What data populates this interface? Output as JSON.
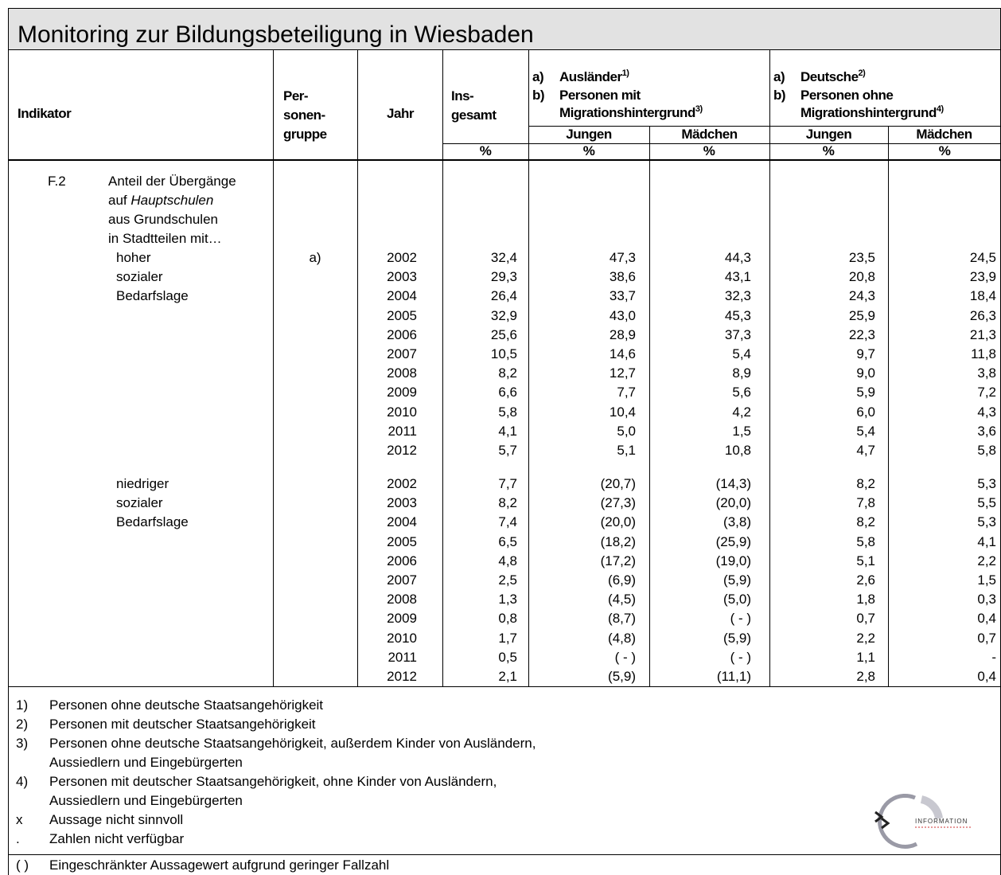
{
  "header": {
    "title": "Monitoring zur Bildungsbeteiligung in Wiesbaden"
  },
  "table": {
    "columns": {
      "indikator": "Indikator",
      "personengruppe": [
        "Per-",
        "sonen-",
        "gruppe"
      ],
      "jahr": "Jahr",
      "insgesamt": [
        "Ins-",
        "gesamt"
      ]
    },
    "groups": [
      {
        "lines": [
          {
            "marker": "a)",
            "text": "Ausländer",
            "note": "1)"
          },
          {
            "marker": "b)",
            "text": "Personen mit"
          },
          {
            "text": "Migrationshintergrund",
            "note": "3)"
          }
        ],
        "sub": [
          "Jungen",
          "Mädchen"
        ]
      },
      {
        "lines": [
          {
            "marker": "a)",
            "text": "Deutsche",
            "note": "2)"
          },
          {
            "marker": "b)",
            "text": "Personen ohne"
          },
          {
            "text": "Migrationshintergrund",
            "note": "4)"
          }
        ],
        "sub": [
          "Jungen",
          "Mädchen"
        ]
      }
    ],
    "units": [
      "%",
      "%",
      "%",
      "%",
      "%"
    ],
    "indicator": {
      "code": "F.2",
      "lines": [
        {
          "text": "Anteil der Übergänge"
        },
        {
          "text": "auf",
          "em": "Hauptschulen"
        },
        {
          "text": "aus Grundschulen"
        },
        {
          "text": "in Stadtteilen mit…"
        }
      ]
    },
    "sections": [
      {
        "label": [
          "hoher",
          "sozialer",
          "Bedarfslage"
        ],
        "personengruppe": "a)",
        "rows": [
          [
            "2002",
            "32,4",
            "47,3",
            "44,3",
            "23,5",
            "24,5"
          ],
          [
            "2003",
            "29,3",
            "38,6",
            "43,1",
            "20,8",
            "23,9"
          ],
          [
            "2004",
            "26,4",
            "33,7",
            "32,3",
            "24,3",
            "18,4"
          ],
          [
            "2005",
            "32,9",
            "43,0",
            "45,3",
            "25,9",
            "26,3"
          ],
          [
            "2006",
            "25,6",
            "28,9",
            "37,3",
            "22,3",
            "21,3"
          ],
          [
            "2007",
            "10,5",
            "14,6",
            "5,4",
            "9,7",
            "11,8"
          ],
          [
            "2008",
            "8,2",
            "12,7",
            "8,9",
            "9,0",
            "3,8"
          ],
          [
            "2009",
            "6,6",
            "7,7",
            "5,6",
            "5,9",
            "7,2"
          ],
          [
            "2010",
            "5,8",
            "10,4",
            "4,2",
            "6,0",
            "4,3"
          ],
          [
            "2011",
            "4,1",
            "5,0",
            "1,5",
            "5,4",
            "3,6"
          ],
          [
            "2012",
            "5,7",
            "5,1",
            "10,8",
            "4,7",
            "5,8"
          ]
        ]
      },
      {
        "label": [
          "niedriger",
          "sozialer",
          "Bedarfslage"
        ],
        "rows": [
          [
            "2002",
            "7,7",
            "(20,7)",
            "(14,3)",
            "8,2",
            "5,3"
          ],
          [
            "2003",
            "8,2",
            "(27,3)",
            "(20,0)",
            "7,8",
            "5,5"
          ],
          [
            "2004",
            "7,4",
            "(20,0)",
            "(3,8)",
            "8,2",
            "5,3"
          ],
          [
            "2005",
            "6,5",
            "(18,2)",
            "(25,9)",
            "5,8",
            "4,1"
          ],
          [
            "2006",
            "4,8",
            "(17,2)",
            "(19,0)",
            "5,1",
            "2,2"
          ],
          [
            "2007",
            "2,5",
            "(6,9)",
            "(5,9)",
            "2,6",
            "1,5"
          ],
          [
            "2008",
            "1,3",
            "(4,5)",
            "(5,0)",
            "1,8",
            "0,3"
          ],
          [
            "2009",
            "0,8",
            "(8,7)",
            "( - )",
            "0,7",
            "0,4"
          ],
          [
            "2010",
            "1,7",
            "(4,8)",
            "(5,9)",
            "2,2",
            "0,7"
          ],
          [
            "2011",
            "0,5",
            "( - )",
            "( - )",
            "1,1",
            "-"
          ],
          [
            "2012",
            "2,1",
            "(5,9)",
            "(11,1)",
            "2,8",
            "0,4"
          ]
        ]
      }
    ]
  },
  "footnotes": [
    {
      "marker": "1)",
      "lines": [
        "Personen ohne deutsche Staatsangehörigkeit"
      ]
    },
    {
      "marker": "2)",
      "lines": [
        "Personen mit deutscher Staatsangehörigkeit"
      ]
    },
    {
      "marker": "3)",
      "lines": [
        "Personen ohne deutsche Staatsangehörigkeit, außerdem Kinder von Ausländern,",
        "Aussiedlern und Eingebürgerten"
      ]
    },
    {
      "marker": "4)",
      "lines": [
        "Personen mit deutscher Staatsangehörigkeit, ohne Kinder von Ausländern,",
        "Aussiedlern und Eingebürgerten"
      ]
    },
    {
      "marker": "x",
      "lines": [
        "Aussage nicht sinnvoll"
      ]
    },
    {
      "marker": ".",
      "lines": [
        "Zahlen nicht verfügbar"
      ]
    },
    {
      "marker": "( )",
      "lines": [
        "Eingeschränkter Aussagewert aufgrund geringer Fallzahl"
      ]
    }
  ],
  "logo": {
    "text": "INFORMATION"
  }
}
